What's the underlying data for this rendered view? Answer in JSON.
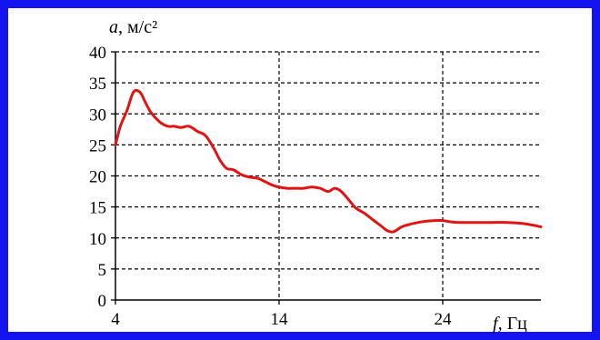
{
  "colors": {
    "frame": "#1414f0",
    "series": "#e01414",
    "grid": "#000000"
  },
  "chart_data": {
    "type": "line",
    "title": "",
    "ylabel_var": "a",
    "ylabel_unit": ", м/с²",
    "xlabel_var": "f",
    "xlabel_unit": ", Гц",
    "xlim": [
      4,
      30
    ],
    "ylim": [
      0,
      40
    ],
    "x_ticks": [
      4,
      14,
      24
    ],
    "y_ticks": [
      0,
      5,
      10,
      15,
      20,
      25,
      30,
      35,
      40
    ],
    "x_tick_labels": [
      "4",
      "14",
      "24"
    ],
    "y_tick_labels": [
      "0",
      "5",
      "10",
      "15",
      "20",
      "25",
      "30",
      "35",
      "40"
    ],
    "grid": true,
    "series": [
      {
        "name": "",
        "x": [
          4.0,
          4.3,
          4.7,
          5.1,
          5.5,
          5.8,
          6.1,
          6.4,
          6.8,
          7.2,
          7.6,
          8.0,
          8.5,
          9.0,
          9.5,
          10.0,
          10.4,
          10.8,
          11.2,
          11.7,
          12.2,
          12.7,
          13.2,
          13.6,
          14.0,
          14.5,
          15.0,
          15.5,
          16.0,
          16.5,
          17.0,
          17.4,
          17.8,
          18.3,
          18.7,
          19.2,
          19.7,
          20.2,
          20.6,
          21.0,
          21.5,
          22.0,
          22.5,
          23.0,
          23.5,
          24.0,
          24.5,
          25.0,
          26.0,
          27.0,
          28.0,
          29.0,
          30.0
        ],
        "y": [
          25.0,
          28.0,
          30.5,
          33.5,
          33.5,
          32.0,
          30.5,
          29.5,
          28.5,
          28.0,
          28.0,
          27.8,
          28.0,
          27.2,
          26.5,
          24.5,
          22.5,
          21.2,
          21.0,
          20.2,
          19.8,
          19.6,
          19.0,
          18.5,
          18.2,
          18.0,
          18.0,
          18.0,
          18.2,
          18.0,
          17.5,
          18.0,
          17.5,
          16.0,
          14.8,
          14.0,
          13.0,
          12.0,
          11.2,
          11.0,
          11.8,
          12.2,
          12.5,
          12.7,
          12.8,
          12.8,
          12.6,
          12.5,
          12.5,
          12.5,
          12.5,
          12.3,
          11.8
        ]
      }
    ]
  }
}
